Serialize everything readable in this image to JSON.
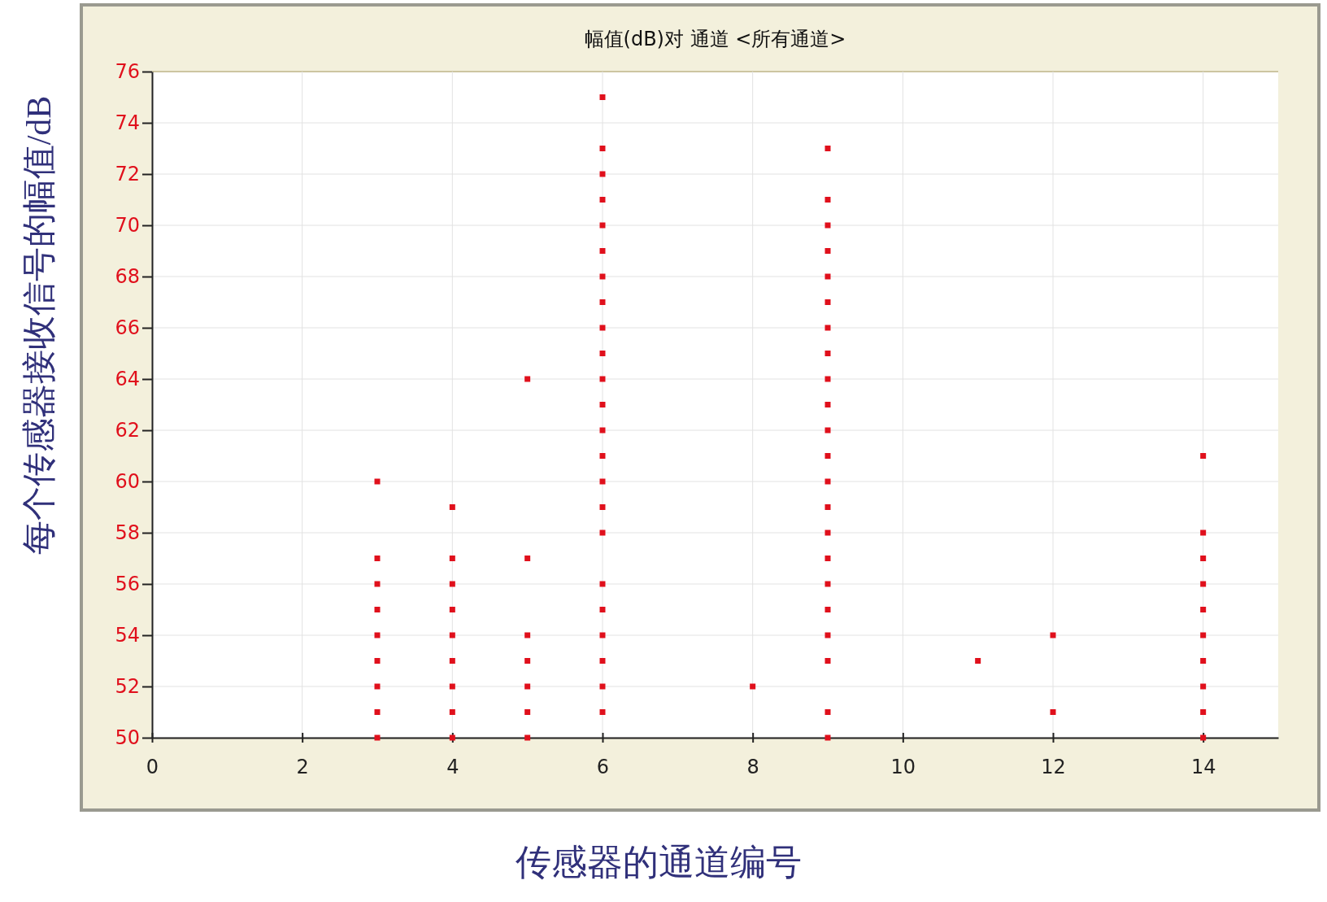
{
  "chart_data": {
    "type": "scatter",
    "title": "幅值(dB)对 通道 <所有通道>",
    "xlabel": "传感器的通道编号",
    "ylabel": "每个传感器接收信号的幅值/dB",
    "series": [
      {
        "color": "#e0101c",
        "x": [
          3,
          3,
          3,
          3,
          3,
          3,
          3,
          3,
          3,
          4,
          4,
          4,
          4,
          4,
          4,
          4,
          4,
          4,
          5,
          5,
          5,
          5,
          5,
          5,
          5,
          6,
          6,
          6,
          6,
          6,
          6,
          6,
          6,
          6,
          6,
          6,
          6,
          6,
          6,
          6,
          6,
          6,
          6,
          6,
          6,
          6,
          6,
          6,
          8,
          9,
          9,
          9,
          9,
          9,
          9,
          9,
          9,
          9,
          9,
          9,
          9,
          9,
          9,
          9,
          9,
          9,
          9,
          9,
          9,
          9,
          9,
          11,
          12,
          12,
          14,
          14,
          14,
          14,
          14,
          14,
          14,
          14,
          14,
          14
        ],
        "values": [
          60,
          57,
          56,
          55,
          54,
          53,
          52,
          51,
          50,
          59,
          57,
          56,
          55,
          54,
          53,
          52,
          51,
          50,
          64,
          57,
          54,
          53,
          52,
          51,
          50,
          75,
          73,
          72,
          71,
          70,
          69,
          68,
          67,
          66,
          65,
          64,
          63,
          62,
          61,
          60,
          59,
          58,
          56,
          55,
          54,
          53,
          52,
          51,
          52,
          73,
          71,
          70,
          69,
          68,
          67,
          66,
          65,
          64,
          63,
          62,
          61,
          60,
          59,
          58,
          57,
          56,
          55,
          54,
          53,
          51,
          50,
          53,
          54,
          51,
          61,
          58,
          57,
          56,
          55,
          54,
          53,
          52,
          51,
          50
        ]
      }
    ],
    "xlim": [
      0,
      15
    ],
    "xticks": [
      0,
      2,
      4,
      6,
      8,
      10,
      12,
      14
    ],
    "ylim": [
      50,
      76
    ],
    "yticks": [
      50,
      52,
      54,
      56,
      58,
      60,
      62,
      64,
      66,
      68,
      70,
      72,
      74,
      76
    ],
    "grid": true,
    "marker": "square"
  }
}
